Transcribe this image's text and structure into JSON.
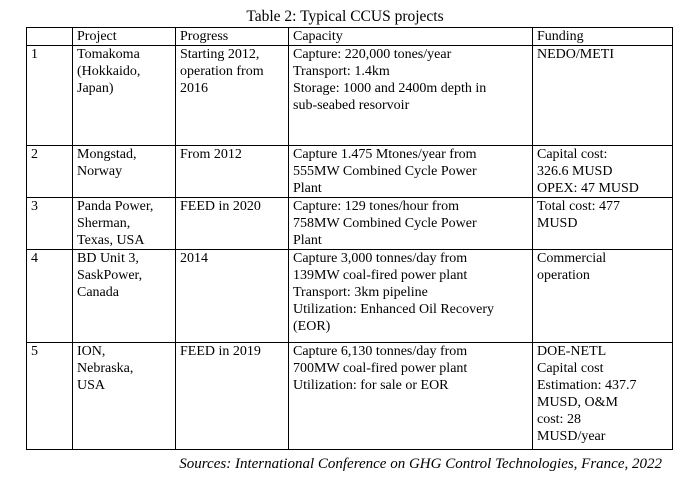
{
  "caption": "Table 2: Typical CCUS projects",
  "headers": [
    "",
    "Project",
    "Progress",
    "Capacity",
    "Funding"
  ],
  "rows": [
    {
      "no": "1",
      "project": [
        "Tomakoma",
        "(Hokkaido,",
        "Japan)"
      ],
      "progress": [
        "Starting 2012,",
        "operation from",
        "2016"
      ],
      "capacity": [
        "Capture: 220,000 tones/year",
        "Transport: 1.4km",
        "Storage: 1000 and 2400m depth in",
        "sub-seabed resorvoir"
      ],
      "funding": [
        "NEDO/METI"
      ]
    },
    {
      "no": "2",
      "project": [
        "Mongstad,",
        "Norway"
      ],
      "progress": [
        "From 2012"
      ],
      "capacity": [
        "Capture 1.475 Mtones/year from",
        "555MW Combined Cycle Power",
        "Plant"
      ],
      "funding": [
        "Capital cost:",
        "326.6 MUSD",
        "OPEX: 47 MUSD"
      ]
    },
    {
      "no": "3",
      "project": [
        "Panda Power,",
        "Sherman,",
        "Texas, USA"
      ],
      "progress": [
        "FEED in 2020"
      ],
      "capacity": [
        "Capture: 129 tones/hour from",
        "758MW Combined Cycle Power",
        "Plant"
      ],
      "funding": [
        "Total cost: 477",
        "MUSD"
      ]
    },
    {
      "no": "4",
      "project": [
        "BD Unit 3,",
        "SaskPower,",
        "Canada"
      ],
      "progress": [
        "2014"
      ],
      "capacity": [
        "Capture 3,000 tonnes/day from",
        "139MW coal-fired power plant",
        "Transport: 3km pipeline",
        "Utilization: Enhanced Oil Recovery",
        "(EOR)"
      ],
      "funding": [
        "Commercial",
        "operation"
      ]
    },
    {
      "no": "5",
      "project": [
        "ION,",
        "Nebraska,",
        "USA"
      ],
      "progress": [
        "FEED in 2019"
      ],
      "capacity": [
        "Capture 6,130 tonnes/day from",
        "700MW coal-fired power plant",
        "Utilization: for sale or EOR"
      ],
      "funding": [
        "DOE-NETL",
        "Capital cost",
        "Estimation: 437.7",
        "MUSD, O&M",
        "cost: 28",
        "MUSD/year"
      ]
    }
  ],
  "source": "Sources: International Conference on GHG Control Technologies, France, 2022"
}
